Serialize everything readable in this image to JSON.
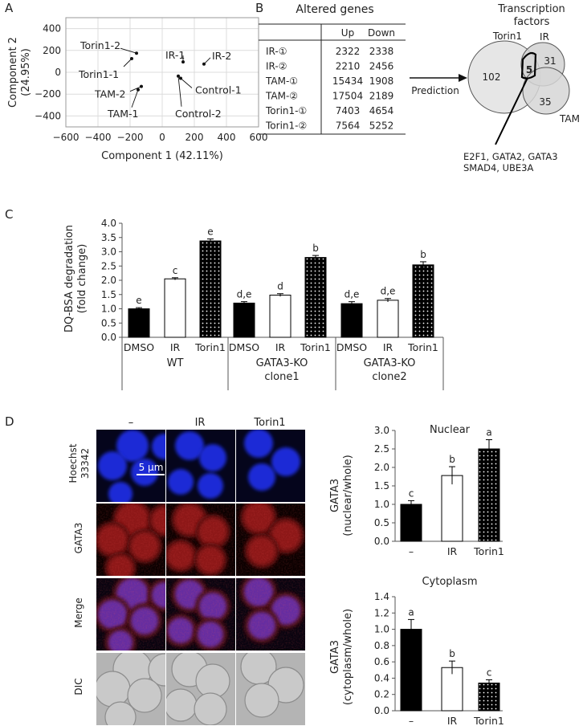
{
  "panels": {
    "a": "A",
    "b": "B",
    "c": "C",
    "d": "D"
  },
  "chart_data": [
    {
      "id": "pca",
      "type": "scatter",
      "xlabel": "Component 1 (42.11%)",
      "ylabel_line1": "Component 2",
      "ylabel_line2": "(24.95%)",
      "xlim": [
        -600,
        600
      ],
      "ylim": [
        -500,
        500
      ],
      "xticks": [
        -600,
        -400,
        -200,
        0,
        200,
        400,
        600
      ],
      "yticks": [
        -400,
        -200,
        0,
        200,
        400
      ],
      "grid": true,
      "points": [
        {
          "label": "Torin1-2",
          "x": -160,
          "y": 175
        },
        {
          "label": "Torin1-1",
          "x": -190,
          "y": 125
        },
        {
          "label": "IR-1",
          "x": 130,
          "y": 95
        },
        {
          "label": "IR-2",
          "x": 260,
          "y": 75
        },
        {
          "label": "Control-1",
          "x": 115,
          "y": -55
        },
        {
          "label": "Control-2",
          "x": 100,
          "y": -35
        },
        {
          "label": "TAM-2",
          "x": -130,
          "y": -130
        },
        {
          "label": "TAM-1",
          "x": -150,
          "y": -160
        }
      ]
    },
    {
      "id": "dqbsa",
      "type": "bar",
      "ylabel_line1": "DQ-BSA degradation",
      "ylabel_line2": "(fold change)",
      "ylim": [
        0,
        4.0
      ],
      "yticks": [
        "0.0",
        "0.5",
        "1.0",
        "1.5",
        "2.0",
        "2.5",
        "3.0",
        "3.5",
        "4.0"
      ],
      "groups": [
        {
          "line1": "WT",
          "line2": "",
          "bars": [
            {
              "category": "DMSO",
              "value": 1.0,
              "err": 0.04,
              "sig": "e",
              "fill": "black"
            },
            {
              "category": "IR",
              "value": 2.05,
              "err": 0.04,
              "sig": "c",
              "fill": "white"
            },
            {
              "category": "Torin1",
              "value": 3.38,
              "err": 0.07,
              "sig": "e",
              "fill": "dots"
            }
          ]
        },
        {
          "line1": "GATA3-KO",
          "line2": "clone1",
          "bars": [
            {
              "category": "DMSO",
              "value": 1.2,
              "err": 0.05,
              "sig": "d,e",
              "fill": "black"
            },
            {
              "category": "IR",
              "value": 1.48,
              "err": 0.05,
              "sig": "d",
              "fill": "white"
            },
            {
              "category": "Torin1",
              "value": 2.8,
              "err": 0.07,
              "sig": "b",
              "fill": "dots"
            }
          ]
        },
        {
          "line1": "GATA3-KO",
          "line2": "clone2",
          "bars": [
            {
              "category": "DMSO",
              "value": 1.18,
              "err": 0.07,
              "sig": "d,e",
              "fill": "black"
            },
            {
              "category": "IR",
              "value": 1.3,
              "err": 0.06,
              "sig": "d,e",
              "fill": "white"
            },
            {
              "category": "Torin1",
              "value": 2.54,
              "err": 0.11,
              "sig": "b",
              "fill": "dots"
            }
          ]
        }
      ]
    },
    {
      "id": "nuclear",
      "type": "bar",
      "title": "Nuclear",
      "ylabel_line1": "GATA3",
      "ylabel_line2": "(nuclear/whole)",
      "ylim": [
        0,
        3.0
      ],
      "yticks": [
        "0.0",
        "0.5",
        "1.0",
        "1.5",
        "2.0",
        "2.5",
        "3.0"
      ],
      "bars": [
        {
          "category": "–",
          "value": 1.0,
          "err": 0.1,
          "sig": "c",
          "fill": "black"
        },
        {
          "category": "IR",
          "value": 1.78,
          "err": 0.24,
          "sig": "b",
          "fill": "white"
        },
        {
          "category": "Torin1",
          "value": 2.5,
          "err": 0.25,
          "sig": "a",
          "fill": "dots"
        }
      ]
    },
    {
      "id": "cytoplasm",
      "type": "bar",
      "title": "Cytoplasm",
      "ylabel_line1": "GATA3",
      "ylabel_line2": "(cytoplasm/whole)",
      "ylim": [
        0,
        1.4
      ],
      "yticks": [
        "0.0",
        "0.2",
        "0.4",
        "0.6",
        "0.8",
        "1.0",
        "1.2",
        "1.4"
      ],
      "bars": [
        {
          "category": "–",
          "value": 1.0,
          "err": 0.12,
          "sig": "a",
          "fill": "black"
        },
        {
          "category": "IR",
          "value": 0.53,
          "err": 0.08,
          "sig": "b",
          "fill": "white"
        },
        {
          "category": "Torin1",
          "value": 0.34,
          "err": 0.04,
          "sig": "c",
          "fill": "dots"
        }
      ]
    },
    {
      "id": "genes",
      "type": "table",
      "title": "Altered genes",
      "columns": [
        "",
        "Up",
        "Down"
      ],
      "rows": [
        [
          "IR-①",
          "2322",
          "2338"
        ],
        [
          "IR-②",
          "2210",
          "2456"
        ],
        [
          "TAM-①",
          "15434",
          "1908"
        ],
        [
          "TAM-②",
          "17504",
          "2189"
        ],
        [
          "Torin1-①",
          "7403",
          "4654"
        ],
        [
          "Torin1-②",
          "7564",
          "5252"
        ]
      ]
    }
  ],
  "prediction": "Prediction",
  "venn": {
    "title_line1": "Transcription",
    "title_line2": "factors",
    "set_torin1": "Torin1",
    "set_ir": "IR",
    "set_tam": "TAM",
    "count_torin1": "102",
    "count_ir": "31",
    "count_tam": "35",
    "count_overlap": "5",
    "genes_line1": "E2F1, GATA2, GATA3",
    "genes_line2": "SMAD4, UBE3A"
  },
  "microscopy": {
    "columns": [
      "–",
      "IR",
      "Torin1"
    ],
    "rows": [
      {
        "line1": "Hoechst",
        "line2": "33342"
      },
      {
        "line1": "GATA3",
        "line2": ""
      },
      {
        "line1": "Merge",
        "line2": ""
      },
      {
        "line1": "DIC",
        "line2": ""
      }
    ],
    "scale_bar": "5 μm"
  }
}
